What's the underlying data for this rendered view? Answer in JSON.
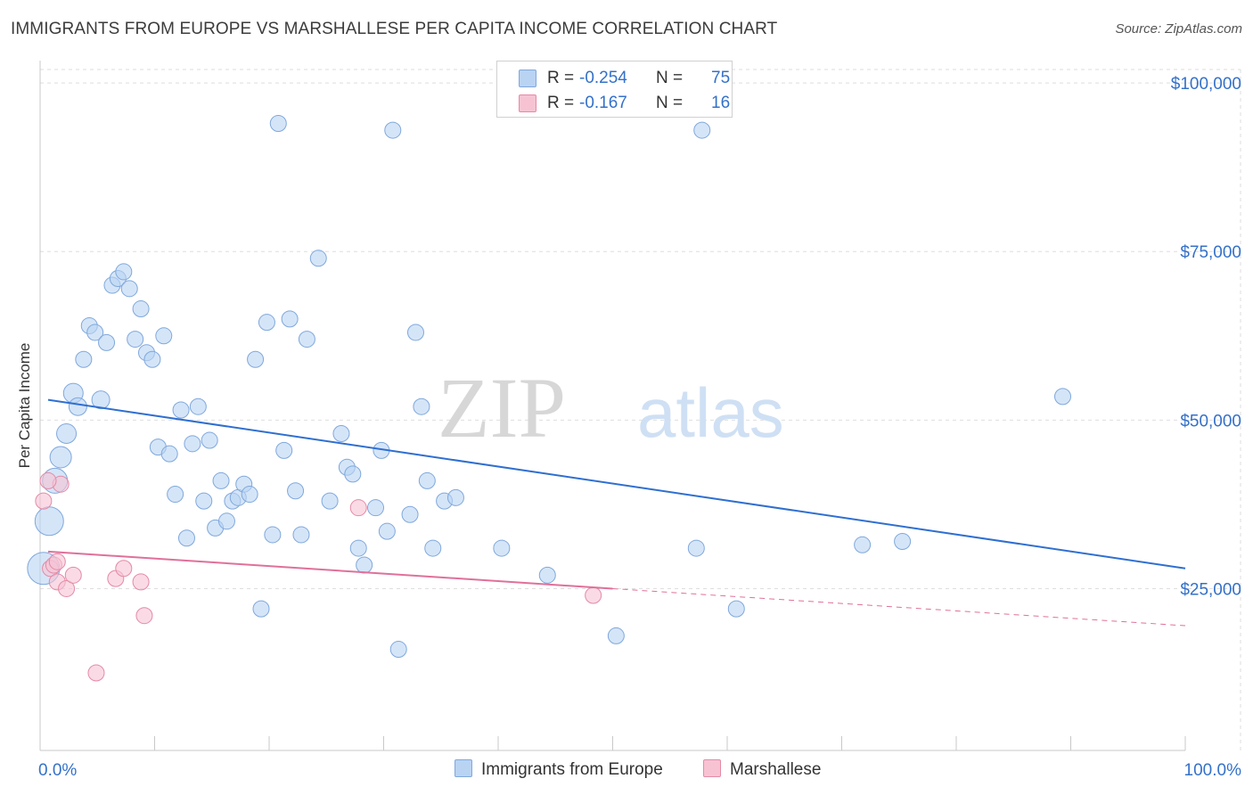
{
  "title": "IMMIGRANTS FROM EUROPE VS MARSHALLESE PER CAPITA INCOME CORRELATION CHART",
  "source": "Source: ZipAtlas.com",
  "watermark": {
    "zip": "ZIP",
    "atlas": "atlas"
  },
  "legend": {
    "rows": [
      {
        "r_label": "R =",
        "r_value": "-0.254",
        "n_label": "N =",
        "n_value": "75"
      },
      {
        "r_label": "R =",
        "r_value": "-0.167",
        "n_label": "N =",
        "n_value": "16"
      }
    ]
  },
  "colors": {
    "blue_fill": "#b9d3f3",
    "blue_stroke": "#7fa8dc",
    "blue_line": "#2f6fd0",
    "pink_fill": "#f7c3d3",
    "pink_stroke": "#e58aa6",
    "pink_line": "#e0709a",
    "axis_text": "#3471c9",
    "grid": "#dedede"
  },
  "chart_data": {
    "type": "scatter",
    "title": "IMMIGRANTS FROM EUROPE VS MARSHALLESE PER CAPITA INCOME CORRELATION CHART",
    "ylabel": "Per Capita Income",
    "xlabel": "",
    "x_tick_labels": [
      "0.0%",
      "100.0%"
    ],
    "y_tick_labels": [
      "$25,000",
      "$50,000",
      "$75,000",
      "$100,000"
    ],
    "y_ticks": [
      25000,
      50000,
      75000,
      100000
    ],
    "xlim": [
      0,
      100
    ],
    "ylim": [
      1000,
      102000
    ],
    "grid": true,
    "legend_placement": "top-center",
    "series": [
      {
        "name": "Immigrants from Europe",
        "color": "#b9d3f3",
        "trend": {
          "x": [
            0.7,
            100
          ],
          "y": [
            53000,
            28000
          ]
        },
        "points": [
          {
            "x": 0.8,
            "y": 35000,
            "s": 16
          },
          {
            "x": 0.3,
            "y": 28000,
            "s": 18
          },
          {
            "x": 1.3,
            "y": 41000,
            "s": 14
          },
          {
            "x": 1.8,
            "y": 44500,
            "s": 12
          },
          {
            "x": 2.3,
            "y": 48000,
            "s": 11
          },
          {
            "x": 2.9,
            "y": 54000,
            "s": 11
          },
          {
            "x": 3.3,
            "y": 52000,
            "s": 10
          },
          {
            "x": 3.8,
            "y": 59000,
            "s": 9
          },
          {
            "x": 4.3,
            "y": 64000,
            "s": 9
          },
          {
            "x": 4.8,
            "y": 63000,
            "s": 9
          },
          {
            "x": 5.3,
            "y": 53000,
            "s": 10
          },
          {
            "x": 5.8,
            "y": 61500,
            "s": 9
          },
          {
            "x": 6.3,
            "y": 70000,
            "s": 9
          },
          {
            "x": 6.8,
            "y": 71000,
            "s": 9
          },
          {
            "x": 7.3,
            "y": 72000,
            "s": 9
          },
          {
            "x": 7.8,
            "y": 69500,
            "s": 9
          },
          {
            "x": 8.3,
            "y": 62000,
            "s": 9
          },
          {
            "x": 8.8,
            "y": 66500,
            "s": 9
          },
          {
            "x": 9.3,
            "y": 60000,
            "s": 9
          },
          {
            "x": 9.8,
            "y": 59000,
            "s": 9
          },
          {
            "x": 10.3,
            "y": 46000,
            "s": 9
          },
          {
            "x": 10.8,
            "y": 62500,
            "s": 9
          },
          {
            "x": 11.3,
            "y": 45000,
            "s": 9
          },
          {
            "x": 11.8,
            "y": 39000,
            "s": 9
          },
          {
            "x": 12.3,
            "y": 51500,
            "s": 9
          },
          {
            "x": 12.8,
            "y": 32500,
            "s": 9
          },
          {
            "x": 13.3,
            "y": 46500,
            "s": 9
          },
          {
            "x": 13.8,
            "y": 52000,
            "s": 9
          },
          {
            "x": 14.3,
            "y": 38000,
            "s": 9
          },
          {
            "x": 14.8,
            "y": 47000,
            "s": 9
          },
          {
            "x": 15.3,
            "y": 34000,
            "s": 9
          },
          {
            "x": 15.8,
            "y": 41000,
            "s": 9
          },
          {
            "x": 16.3,
            "y": 35000,
            "s": 9
          },
          {
            "x": 16.8,
            "y": 38000,
            "s": 9
          },
          {
            "x": 17.3,
            "y": 38500,
            "s": 9
          },
          {
            "x": 17.8,
            "y": 40500,
            "s": 9
          },
          {
            "x": 18.3,
            "y": 39000,
            "s": 9
          },
          {
            "x": 18.8,
            "y": 59000,
            "s": 9
          },
          {
            "x": 19.3,
            "y": 22000,
            "s": 9
          },
          {
            "x": 19.8,
            "y": 64500,
            "s": 9
          },
          {
            "x": 20.3,
            "y": 33000,
            "s": 9
          },
          {
            "x": 20.8,
            "y": 94000,
            "s": 9
          },
          {
            "x": 21.3,
            "y": 45500,
            "s": 9
          },
          {
            "x": 21.8,
            "y": 65000,
            "s": 9
          },
          {
            "x": 22.3,
            "y": 39500,
            "s": 9
          },
          {
            "x": 22.8,
            "y": 33000,
            "s": 9
          },
          {
            "x": 23.3,
            "y": 62000,
            "s": 9
          },
          {
            "x": 24.3,
            "y": 74000,
            "s": 9
          },
          {
            "x": 25.3,
            "y": 38000,
            "s": 9
          },
          {
            "x": 26.3,
            "y": 48000,
            "s": 9
          },
          {
            "x": 26.8,
            "y": 43000,
            "s": 9
          },
          {
            "x": 27.3,
            "y": 42000,
            "s": 9
          },
          {
            "x": 27.8,
            "y": 31000,
            "s": 9
          },
          {
            "x": 28.3,
            "y": 28500,
            "s": 9
          },
          {
            "x": 29.3,
            "y": 37000,
            "s": 9
          },
          {
            "x": 29.8,
            "y": 45500,
            "s": 9
          },
          {
            "x": 30.3,
            "y": 33500,
            "s": 9
          },
          {
            "x": 30.8,
            "y": 93000,
            "s": 9
          },
          {
            "x": 31.3,
            "y": 16000,
            "s": 9
          },
          {
            "x": 32.3,
            "y": 36000,
            "s": 9
          },
          {
            "x": 32.8,
            "y": 63000,
            "s": 9
          },
          {
            "x": 33.3,
            "y": 52000,
            "s": 9
          },
          {
            "x": 33.8,
            "y": 41000,
            "s": 9
          },
          {
            "x": 34.3,
            "y": 31000,
            "s": 9
          },
          {
            "x": 35.3,
            "y": 38000,
            "s": 9
          },
          {
            "x": 36.3,
            "y": 38500,
            "s": 9
          },
          {
            "x": 40.3,
            "y": 31000,
            "s": 9
          },
          {
            "x": 44.3,
            "y": 27000,
            "s": 9
          },
          {
            "x": 50.3,
            "y": 18000,
            "s": 9
          },
          {
            "x": 57.3,
            "y": 31000,
            "s": 9
          },
          {
            "x": 57.8,
            "y": 93000,
            "s": 9
          },
          {
            "x": 60.8,
            "y": 22000,
            "s": 9
          },
          {
            "x": 71.8,
            "y": 31500,
            "s": 9
          },
          {
            "x": 75.3,
            "y": 32000,
            "s": 9
          },
          {
            "x": 89.3,
            "y": 53500,
            "s": 9
          }
        ]
      },
      {
        "name": "Marshallese",
        "color": "#f7c3d3",
        "trend": {
          "x": [
            0.7,
            50
          ],
          "y": [
            30500,
            25000
          ]
        },
        "trend_dashed": {
          "x": [
            50,
            100
          ],
          "y": [
            25000,
            19500
          ]
        },
        "points": [
          {
            "x": 0.3,
            "y": 38000,
            "s": 9
          },
          {
            "x": 0.9,
            "y": 28000,
            "s": 9
          },
          {
            "x": 1.2,
            "y": 28500,
            "s": 9
          },
          {
            "x": 1.5,
            "y": 26000,
            "s": 9
          },
          {
            "x": 1.8,
            "y": 40500,
            "s": 9
          },
          {
            "x": 2.3,
            "y": 25000,
            "s": 9
          },
          {
            "x": 2.9,
            "y": 27000,
            "s": 9
          },
          {
            "x": 0.7,
            "y": 41000,
            "s": 9
          },
          {
            "x": 4.9,
            "y": 12500,
            "s": 9
          },
          {
            "x": 6.6,
            "y": 26500,
            "s": 9
          },
          {
            "x": 7.3,
            "y": 28000,
            "s": 9
          },
          {
            "x": 8.8,
            "y": 26000,
            "s": 9
          },
          {
            "x": 9.1,
            "y": 21000,
            "s": 9
          },
          {
            "x": 27.8,
            "y": 37000,
            "s": 9
          },
          {
            "x": 48.3,
            "y": 24000,
            "s": 9
          },
          {
            "x": 1.5,
            "y": 29000,
            "s": 9
          }
        ]
      }
    ]
  }
}
